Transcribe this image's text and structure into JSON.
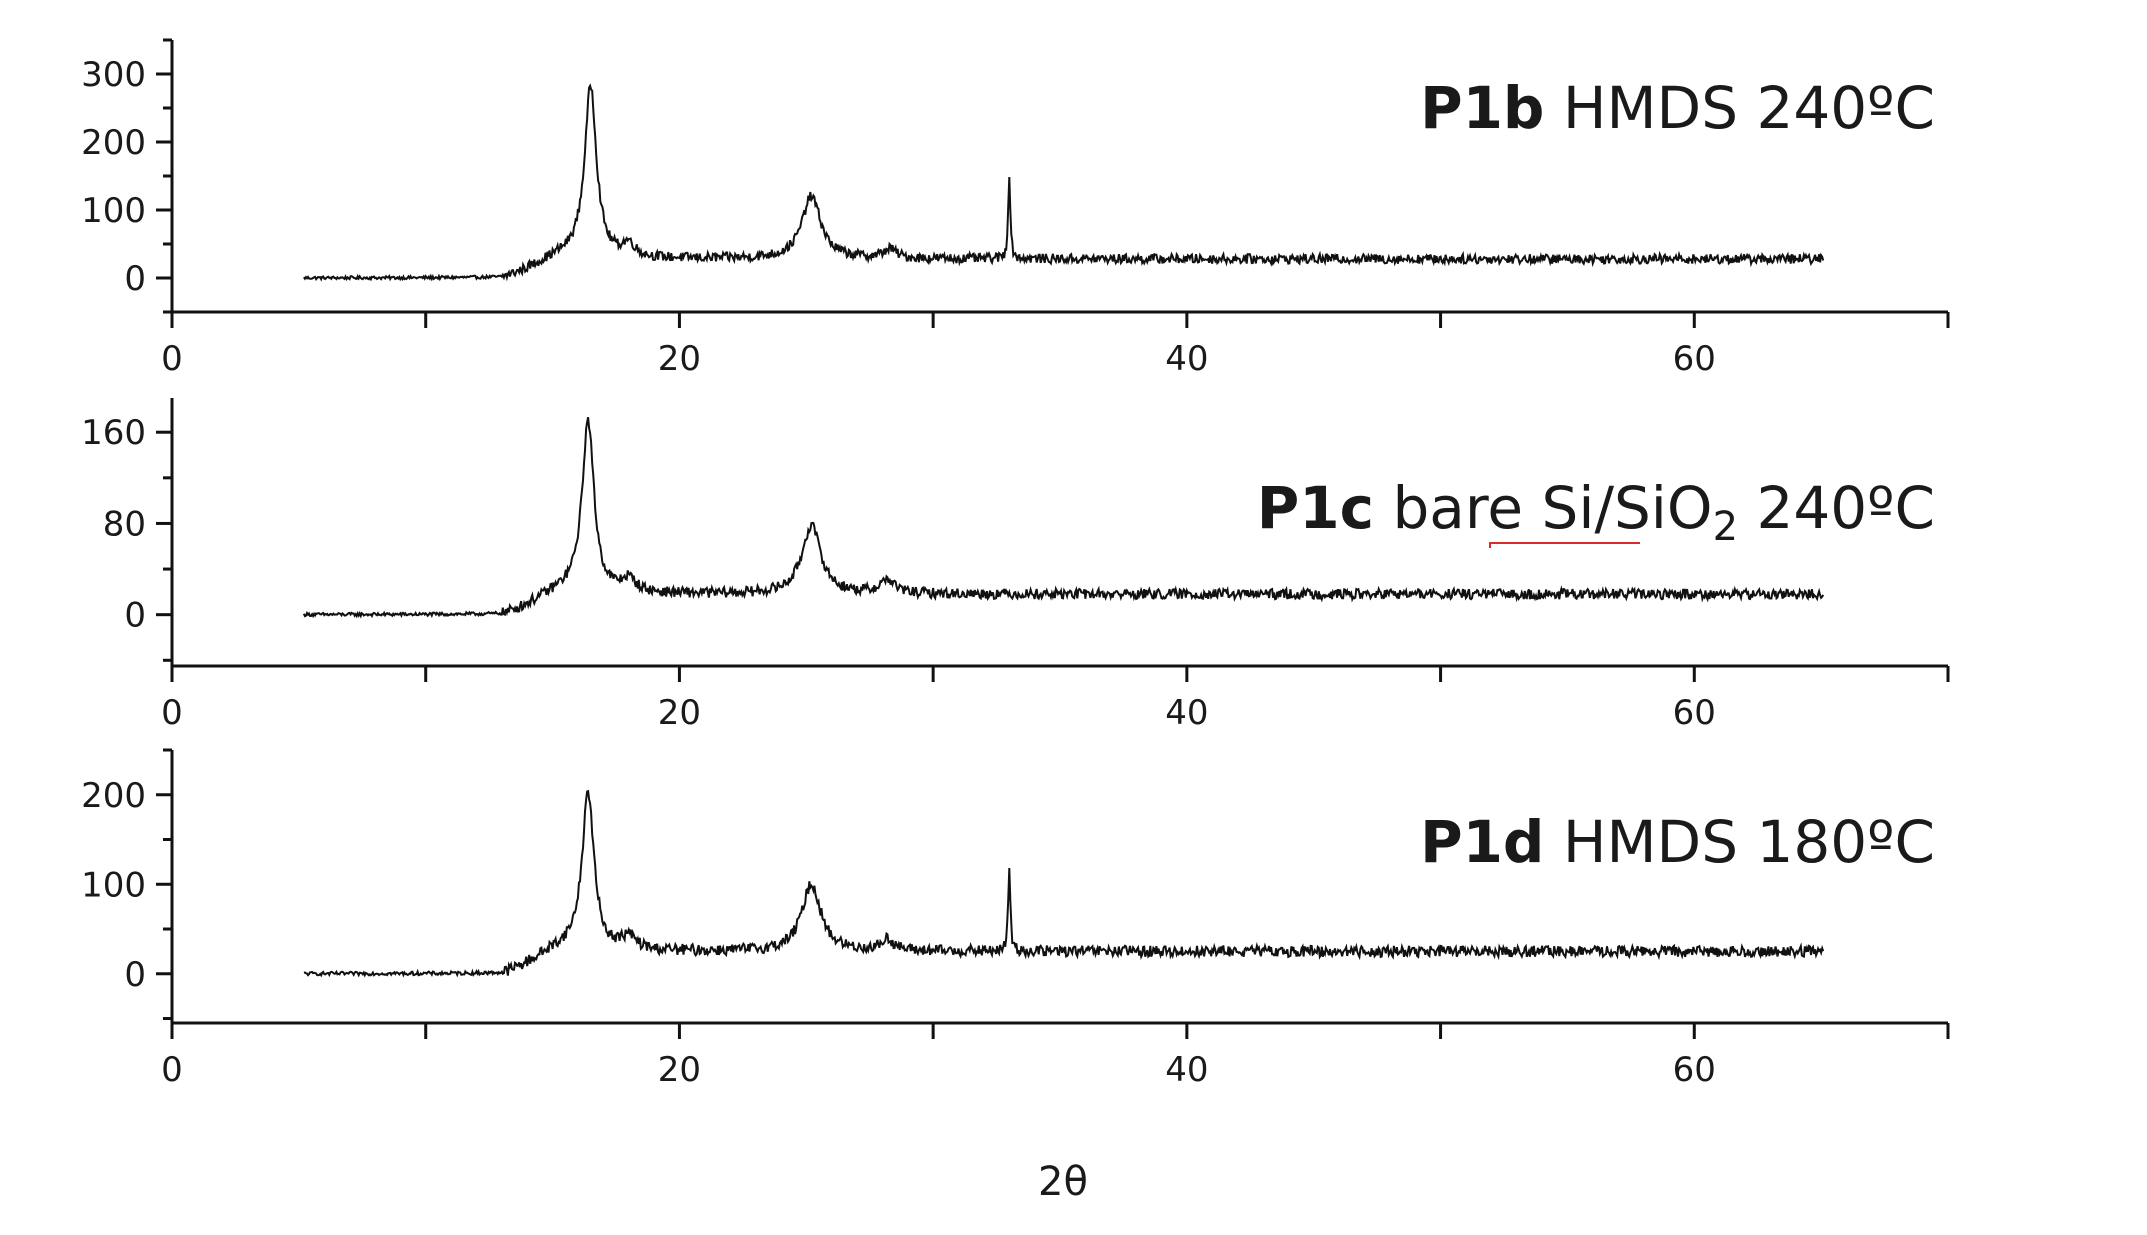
{
  "chart_data": [
    {
      "type": "line",
      "title_bold": "P1b",
      "title_rest": " HMDS 240ºC",
      "xlim": [
        0,
        70
      ],
      "xticks": [
        0,
        20,
        40,
        60
      ],
      "ylim": [
        -50,
        350
      ],
      "yticks": [
        0,
        100,
        200,
        300
      ],
      "baseline": 28,
      "series": [
        {
          "peaks": [
            {
              "x": 16.5,
              "y": 280,
              "width": 0.28
            },
            {
              "x": 18.0,
              "y": 48,
              "width": 0.3
            },
            {
              "x": 25.2,
              "y": 120,
              "width": 0.45
            },
            {
              "x": 28.3,
              "y": 42,
              "width": 0.3
            },
            {
              "x": 33.0,
              "y": 155,
              "width": 0.05
            }
          ],
          "points": [
            [
              5,
              0
            ],
            [
              10,
              0
            ],
            [
              14,
              8
            ],
            [
              16,
              75
            ],
            [
              16.5,
              280
            ],
            [
              17,
              70
            ],
            [
              18,
              48
            ],
            [
              20,
              28
            ],
            [
              24,
              38
            ],
            [
              25.2,
              120
            ],
            [
              26,
              40
            ],
            [
              28.3,
              42
            ],
            [
              30,
              28
            ],
            [
              33,
              28
            ],
            [
              33.0,
              155
            ],
            [
              33.1,
              28
            ],
            [
              44,
              33
            ],
            [
              50,
              27
            ],
            [
              60,
              28
            ],
            [
              65,
              30
            ]
          ]
        }
      ]
    },
    {
      "type": "line",
      "title_bold": "P1c",
      "title_rest": " bare Si/SiO",
      "title_sub": "2",
      "title_tail": " 240ºC",
      "xlim": [
        0,
        70
      ],
      "xticks": [
        0,
        20,
        40,
        60
      ],
      "ylim": [
        -45,
        190
      ],
      "yticks": [
        0,
        80,
        160
      ],
      "baseline": 18,
      "series": [
        {
          "peaks": [
            {
              "x": 16.4,
              "y": 168,
              "width": 0.28
            },
            {
              "x": 18.0,
              "y": 30,
              "width": 0.35
            },
            {
              "x": 25.2,
              "y": 78,
              "width": 0.45
            },
            {
              "x": 28.2,
              "y": 30,
              "width": 0.35
            }
          ],
          "points": [
            [
              5,
              0
            ],
            [
              10,
              0
            ],
            [
              13,
              5
            ],
            [
              15,
              25
            ],
            [
              16.4,
              168
            ],
            [
              17,
              45
            ],
            [
              18,
              30
            ],
            [
              20,
              20
            ],
            [
              24,
              28
            ],
            [
              25.2,
              78
            ],
            [
              26,
              30
            ],
            [
              28.2,
              30
            ],
            [
              30,
              20
            ],
            [
              40,
              18
            ],
            [
              50,
              20
            ],
            [
              60,
              22
            ],
            [
              65,
              32
            ]
          ]
        }
      ]
    },
    {
      "type": "line",
      "title_bold": "P1d",
      "title_rest": " HMDS 180ºC",
      "xlim": [
        0,
        70
      ],
      "xticks": [
        0,
        20,
        40,
        60
      ],
      "ylim": [
        -55,
        250
      ],
      "yticks": [
        0,
        100,
        200
      ],
      "baseline": 25,
      "series": [
        {
          "peaks": [
            {
              "x": 16.4,
              "y": 200,
              "width": 0.28
            },
            {
              "x": 18.0,
              "y": 40,
              "width": 0.35
            },
            {
              "x": 25.2,
              "y": 100,
              "width": 0.45
            },
            {
              "x": 28.2,
              "y": 38,
              "width": 0.3
            },
            {
              "x": 33.0,
              "y": 120,
              "width": 0.05
            }
          ],
          "points": [
            [
              5,
              0
            ],
            [
              10,
              2
            ],
            [
              13,
              8
            ],
            [
              15,
              28
            ],
            [
              16.4,
              200
            ],
            [
              17,
              55
            ],
            [
              18,
              40
            ],
            [
              20,
              25
            ],
            [
              24,
              32
            ],
            [
              25.2,
              100
            ],
            [
              26,
              35
            ],
            [
              28.2,
              38
            ],
            [
              30,
              25
            ],
            [
              40,
              22
            ],
            [
              50,
              22
            ],
            [
              60,
              24
            ],
            [
              65,
              28
            ]
          ]
        }
      ]
    }
  ],
  "xlabel": "2θ"
}
